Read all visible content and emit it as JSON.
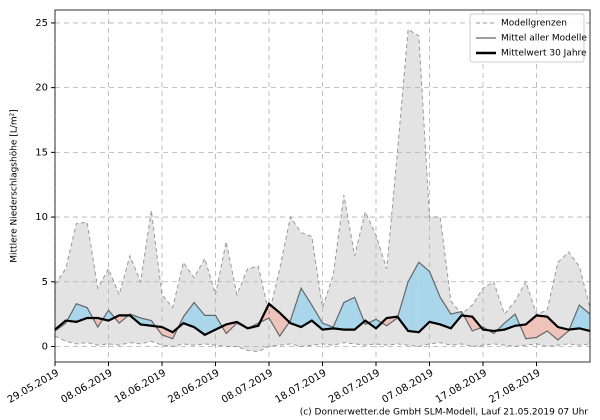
{
  "chart_data": {
    "type": "band-line",
    "ylabel": "Mittlere Niederschlagshöhe [L/m²]",
    "footer": "(c) Donnerwetter.de GmbH SLM-Modell, Lauf 21.05.2019 07 Uhr",
    "x": [
      "29.05.2019",
      "31.05.2019",
      "02.06.2019",
      "04.06.2019",
      "06.06.2019",
      "08.06.2019",
      "10.06.2019",
      "12.06.2019",
      "14.06.2019",
      "16.06.2019",
      "18.06.2019",
      "20.06.2019",
      "22.06.2019",
      "24.06.2019",
      "26.06.2019",
      "28.06.2019",
      "30.06.2019",
      "02.07.2019",
      "04.07.2019",
      "06.07.2019",
      "08.07.2019",
      "10.07.2019",
      "12.07.2019",
      "14.07.2019",
      "16.07.2019",
      "18.07.2019",
      "20.07.2019",
      "22.07.2019",
      "24.07.2019",
      "26.07.2019",
      "28.07.2019",
      "30.07.2019",
      "01.08.2019",
      "03.08.2019",
      "05.08.2019",
      "07.08.2019",
      "09.08.2019",
      "11.08.2019",
      "13.08.2019",
      "15.08.2019",
      "17.08.2019",
      "19.08.2019",
      "21.08.2019",
      "23.08.2019",
      "25.08.2019",
      "27.08.2019",
      "29.08.2019",
      "31.08.2019",
      "02.09.2019",
      "04.09.2019",
      "06.09.2019"
    ],
    "xticks": [
      "29.05.2019",
      "08.06.2019",
      "18.06.2019",
      "28.06.2019",
      "08.07.2019",
      "18.07.2019",
      "28.07.2019",
      "07.08.2019",
      "17.08.2019",
      "27.08.2019"
    ],
    "series": [
      {
        "name": "Modellgrenzen",
        "color": "#999999",
        "fill": "#e3e3e3",
        "values": [
          4.8,
          6,
          9.5,
          9.6,
          4.5,
          6,
          4,
          7,
          5,
          10.5,
          4,
          3,
          6.5,
          5.3,
          6.8,
          4,
          8.1,
          4,
          6,
          6.2,
          2.5,
          6,
          10,
          8.8,
          8.5,
          3,
          5.5,
          11.7,
          7,
          10.4,
          8.6,
          6,
          15,
          24.5,
          24,
          10,
          10,
          3.5,
          2.5,
          3.2,
          4.5,
          5,
          2.5,
          3.5,
          5,
          2.5,
          2.8,
          6.5,
          7.3,
          6.2,
          3
        ],
        "lower": [
          0.8,
          0.4,
          0.2,
          0.3,
          0.1,
          0.2,
          0.1,
          0.3,
          0.2,
          0.4,
          0.1,
          0,
          0.2,
          0.1,
          0.2,
          0.1,
          0,
          0,
          -0.3,
          -0.4,
          0,
          0.1,
          0.2,
          0,
          0.1,
          0.2,
          0.1,
          0.3,
          0.2,
          0.1,
          0.2,
          0.1,
          0.2,
          0.1,
          0,
          0.2,
          0.3,
          0.1,
          0.2,
          0,
          0.1,
          0.2,
          0.1,
          0,
          0.1,
          0.2,
          0,
          0.1,
          0.2,
          0.1,
          0.2
        ]
      },
      {
        "name": "Mittel aller Modelle",
        "color": "#666666",
        "values": [
          1.2,
          1.8,
          3.3,
          3,
          1.5,
          2.8,
          1.8,
          2.5,
          2.2,
          2,
          0.9,
          0.6,
          2.3,
          3.4,
          2.4,
          2.4,
          1,
          1.8,
          1.4,
          1.8,
          2.2,
          0.8,
          2,
          4.5,
          3.2,
          1.8,
          1.5,
          3.4,
          3.8,
          1.7,
          2.1,
          1.6,
          2.2,
          5,
          6.5,
          5.8,
          3.8,
          2.5,
          2.7,
          1.2,
          1.5,
          1,
          1.8,
          2.5,
          0.6,
          0.7,
          1.2,
          0.5,
          1.2,
          3.2,
          2.5
        ]
      },
      {
        "name": "Mittelwert 30 Jahre",
        "color": "#000000",
        "values": [
          1.3,
          2,
          1.9,
          2.2,
          2.2,
          2,
          2.4,
          2.4,
          1.7,
          1.6,
          1.5,
          1.1,
          1.8,
          1.5,
          0.9,
          1.3,
          1.7,
          1.9,
          1.4,
          1.6,
          3.3,
          2.6,
          1.8,
          1.5,
          2,
          1.3,
          1.4,
          1.3,
          1.3,
          2,
          1.4,
          2.2,
          2.3,
          1.2,
          1.1,
          1.9,
          1.7,
          1.4,
          2.4,
          2.3,
          1.3,
          1.2,
          1.3,
          1.6,
          1.7,
          2.4,
          2.3,
          1.5,
          1.3,
          1.4,
          1.2
        ]
      }
    ],
    "above_color": "#a9d6ea",
    "below_color": "#eec3b9",
    "ylim": [
      -1.2,
      26
    ],
    "yticks": [
      0,
      5,
      10,
      15,
      20,
      25
    ],
    "grid": true,
    "legend": "upper right"
  }
}
